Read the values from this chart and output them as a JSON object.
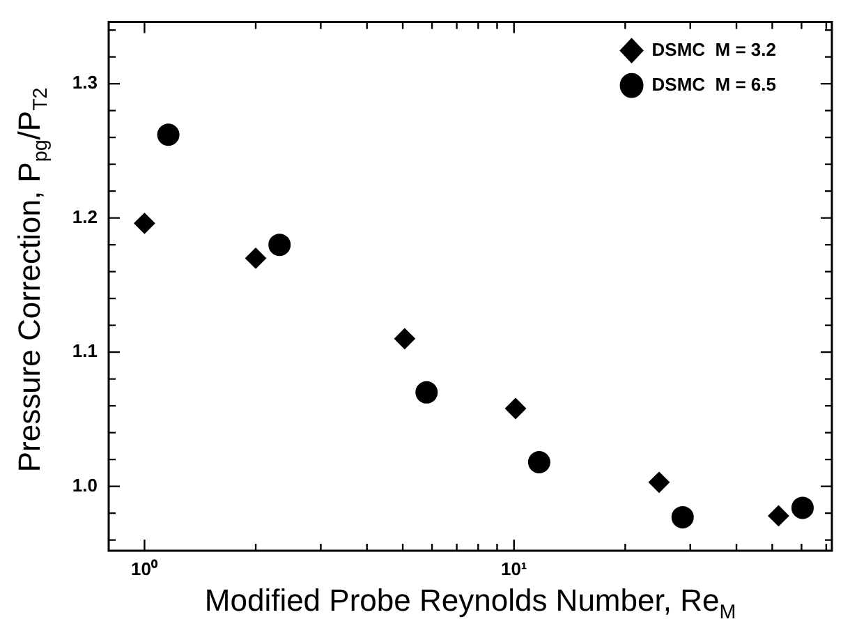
{
  "chart_data": {
    "type": "scatter",
    "xlabel": "Modified Probe Reynolds Number, Re$_{M}$",
    "ylabel": "Pressure Correction, P$_{pg}$/P$_{T2}$",
    "log": "x",
    "xlim": [
      0.8,
      72.5
    ],
    "ylim": [
      0.952,
      1.346
    ],
    "xticks": [
      {
        "value": 1,
        "label": "10⁰"
      },
      {
        "value": 2,
        "label": null
      },
      {
        "value": 3,
        "label": null
      },
      {
        "value": 4,
        "label": null
      },
      {
        "value": 5,
        "label": null
      },
      {
        "value": 6,
        "label": null
      },
      {
        "value": 7,
        "label": null
      },
      {
        "value": 8,
        "label": null
      },
      {
        "value": 9,
        "label": null
      },
      {
        "value": 10,
        "label": "10¹"
      },
      {
        "value": 20,
        "label": null
      },
      {
        "value": 30,
        "label": null
      },
      {
        "value": 40,
        "label": null
      },
      {
        "value": 50,
        "label": null
      },
      {
        "value": 60,
        "label": null
      },
      {
        "value": 70,
        "label": null
      }
    ],
    "yticks": [
      {
        "value": 0.96,
        "label": null
      },
      {
        "value": 0.98,
        "label": null
      },
      {
        "value": 1.0,
        "label": "1.0"
      },
      {
        "value": 1.02,
        "label": null
      },
      {
        "value": 1.04,
        "label": null
      },
      {
        "value": 1.06,
        "label": null
      },
      {
        "value": 1.08,
        "label": null
      },
      1.1,
      {
        "value": 1.12,
        "label": null
      },
      {
        "value": 1.14,
        "label": null
      },
      {
        "value": 1.16,
        "label": null
      },
      {
        "value": 1.18,
        "label": null
      },
      1.2,
      {
        "value": 1.22,
        "label": null
      },
      {
        "value": 1.24,
        "label": null
      },
      {
        "value": 1.26,
        "label": null
      },
      {
        "value": 1.28,
        "label": null
      },
      1.3,
      {
        "value": 1.32,
        "label": null
      },
      {
        "value": 1.34,
        "label": null
      }
    ],
    "grid": false,
    "legend": "top right",
    "series": [
      {
        "name": "DSMC  M = 3.2",
        "color": "#000000",
        "marker": "diamond",
        "x": [
          1.0,
          2.0,
          5.06,
          10.1,
          24.7,
          52
        ],
        "values": [
          1.196,
          1.17,
          1.11,
          1.058,
          1.003,
          0.978
        ]
      },
      {
        "name": "DSMC  M = 6.5",
        "color": "#000000",
        "marker": "circle",
        "x": [
          1.16,
          2.32,
          5.8,
          11.7,
          28.6,
          60.4
        ],
        "values": [
          1.262,
          1.18,
          1.07,
          1.018,
          0.977,
          0.984
        ]
      }
    ]
  }
}
